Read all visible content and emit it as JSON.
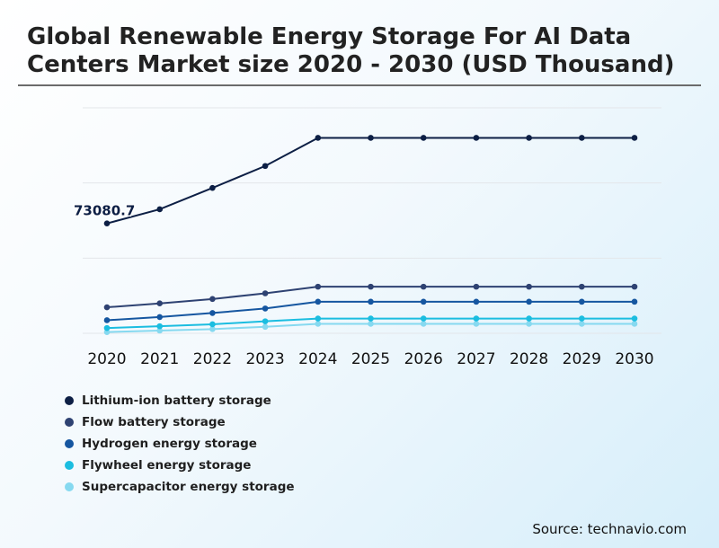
{
  "page": {
    "title": "Global Renewable Energy Storage For AI Data Centers Market size 2020 - 2030 (USD Thousand)",
    "source": "Source: technavio.com"
  },
  "chart_data": {
    "type": "line",
    "title": "Global Renewable Energy Storage For AI Data Centers Market size 2020 - 2030 (USD Thousand)",
    "xlabel": "",
    "ylabel": "",
    "x": [
      "2020",
      "2021",
      "2022",
      "2023",
      "2024",
      "2025",
      "2026",
      "2027",
      "2028",
      "2029",
      "2030"
    ],
    "ylim": [
      0,
      150000
    ],
    "grid": true,
    "legend_position": "bottom-left",
    "annotation": {
      "series": "Lithium-ion battery storage",
      "index": 0,
      "text": "73080.7"
    },
    "series": [
      {
        "name": "Lithium-ion battery storage",
        "color": "#0d1f45",
        "values": [
          73080.7,
          82500,
          96700,
          111300,
          130000,
          130000,
          130000,
          130000,
          130000,
          130000,
          130000
        ]
      },
      {
        "name": "Flow battery storage",
        "color": "#2e4272",
        "values": [
          17300,
          19900,
          22800,
          26600,
          31000,
          31000,
          31000,
          31000,
          31000,
          31000,
          31000
        ]
      },
      {
        "name": "Hydrogen energy storage",
        "color": "#1556a0",
        "values": [
          8700,
          10800,
          13500,
          16500,
          21000,
          21000,
          21000,
          21000,
          21000,
          21000,
          21000
        ]
      },
      {
        "name": "Flywheel energy storage",
        "color": "#1bbde0",
        "values": [
          3500,
          4700,
          6000,
          8000,
          9800,
          9800,
          9800,
          9800,
          9800,
          9800,
          9800
        ]
      },
      {
        "name": "Supercapacitor energy storage",
        "color": "#86d9f0",
        "values": [
          800,
          1800,
          2800,
          4300,
          6300,
          6300,
          6300,
          6300,
          6300,
          6300,
          6300
        ]
      }
    ]
  }
}
